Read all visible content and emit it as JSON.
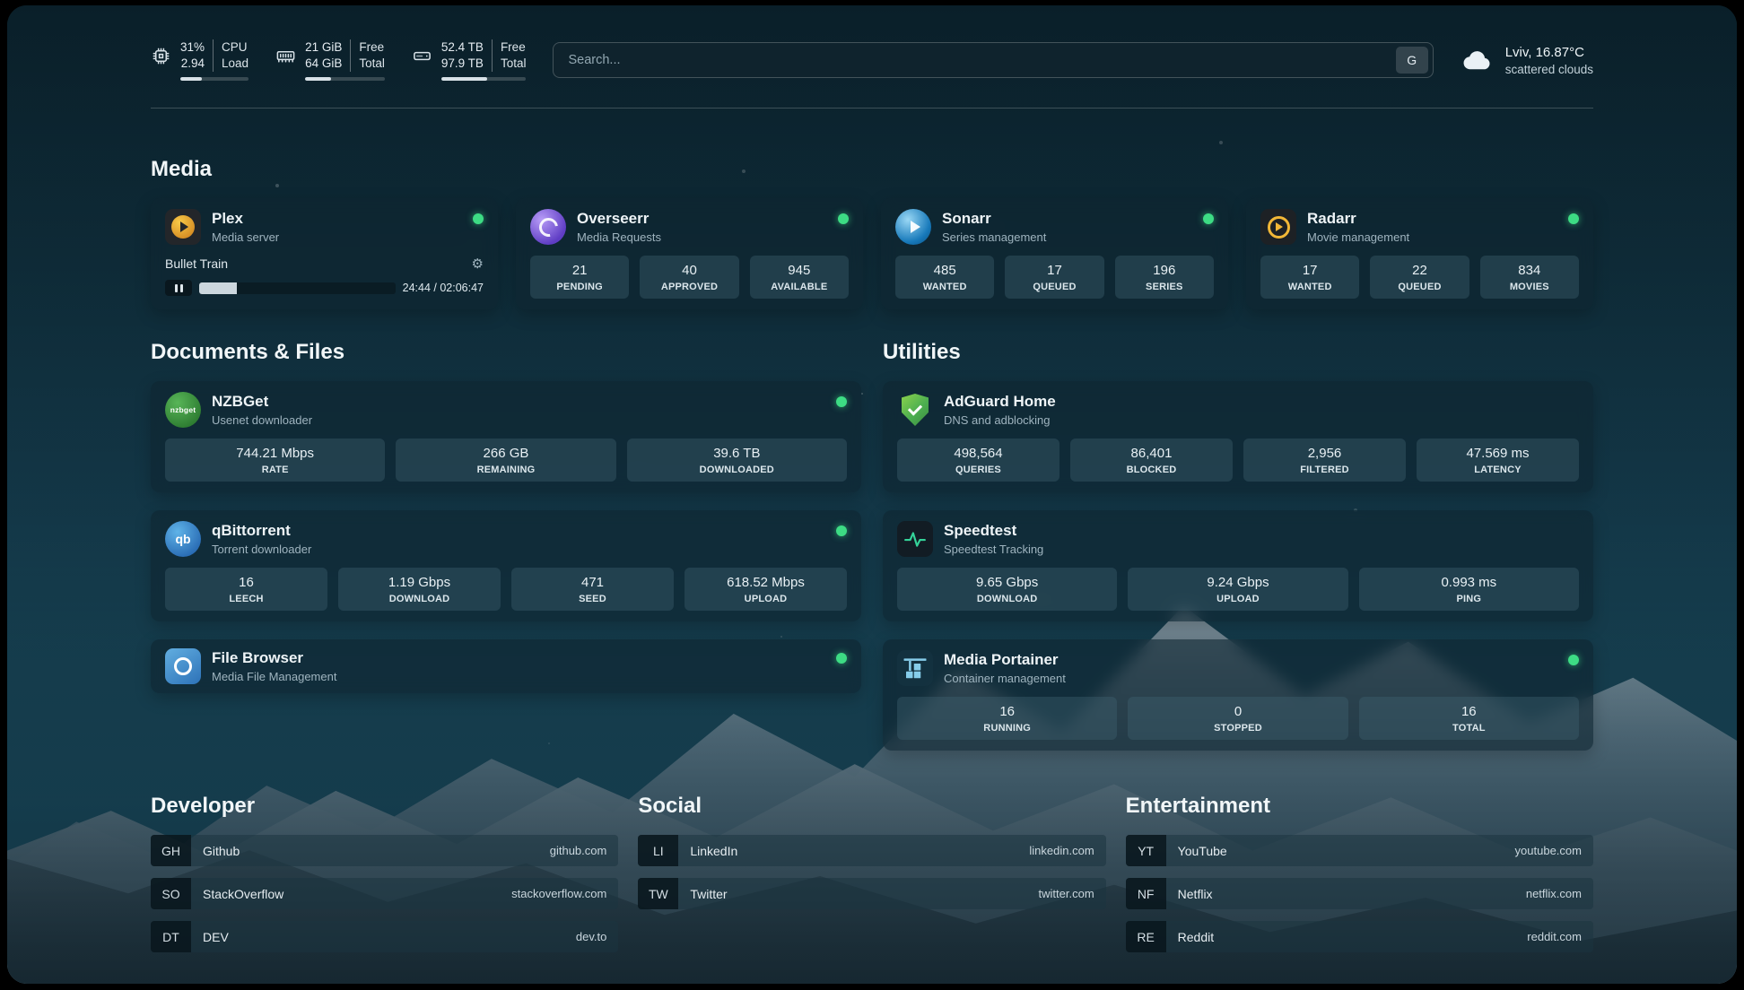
{
  "colors": {
    "accent_green": "#3ddc84",
    "page_teal": "#143a4b"
  },
  "topbar": {
    "cpu": {
      "value1": "31%",
      "label1": "CPU",
      "value2": "2.94",
      "label2": "Load",
      "percent": 31
    },
    "ram": {
      "value1": "21 GiB",
      "label1": "Free",
      "value2": "64 GiB",
      "label2": "Total",
      "percent": 33
    },
    "disk": {
      "value1": "52.4 TB",
      "label1": "Free",
      "value2": "97.9 TB",
      "label2": "Total",
      "percent": 54
    },
    "search": {
      "placeholder": "Search...",
      "engine": "G"
    },
    "weather": {
      "location": "Lviv, 16.87°C",
      "condition": "scattered clouds"
    }
  },
  "media": {
    "title": "Media",
    "plex": {
      "name": "Plex",
      "subtitle": "Media server",
      "now_playing": "Bullet Train",
      "time": "24:44 / 02:06:47",
      "progress_percent": 19
    },
    "overseerr": {
      "name": "Overseerr",
      "subtitle": "Media Requests",
      "stats": [
        {
          "value": "21",
          "label": "PENDING"
        },
        {
          "value": "40",
          "label": "APPROVED"
        },
        {
          "value": "945",
          "label": "AVAILABLE"
        }
      ]
    },
    "sonarr": {
      "name": "Sonarr",
      "subtitle": "Series management",
      "stats": [
        {
          "value": "485",
          "label": "WANTED"
        },
        {
          "value": "17",
          "label": "QUEUED"
        },
        {
          "value": "196",
          "label": "SERIES"
        }
      ]
    },
    "radarr": {
      "name": "Radarr",
      "subtitle": "Movie management",
      "stats": [
        {
          "value": "17",
          "label": "WANTED"
        },
        {
          "value": "22",
          "label": "QUEUED"
        },
        {
          "value": "834",
          "label": "MOVIES"
        }
      ]
    }
  },
  "documents": {
    "title": "Documents & Files",
    "nzbget": {
      "name": "NZBGet",
      "subtitle": "Usenet downloader",
      "stats": [
        {
          "value": "744.21 Mbps",
          "label": "RATE"
        },
        {
          "value": "266 GB",
          "label": "REMAINING"
        },
        {
          "value": "39.6 TB",
          "label": "DOWNLOADED"
        }
      ]
    },
    "qbittorrent": {
      "name": "qBittorrent",
      "subtitle": "Torrent downloader",
      "stats": [
        {
          "value": "16",
          "label": "LEECH"
        },
        {
          "value": "1.19 Gbps",
          "label": "DOWNLOAD"
        },
        {
          "value": "471",
          "label": "SEED"
        },
        {
          "value": "618.52 Mbps",
          "label": "UPLOAD"
        }
      ]
    },
    "filebrowser": {
      "name": "File Browser",
      "subtitle": "Media File Management"
    }
  },
  "utilities": {
    "title": "Utilities",
    "adguard": {
      "name": "AdGuard Home",
      "subtitle": "DNS and adblocking",
      "stats": [
        {
          "value": "498,564",
          "label": "QUERIES"
        },
        {
          "value": "86,401",
          "label": "BLOCKED"
        },
        {
          "value": "2,956",
          "label": "FILTERED"
        },
        {
          "value": "47.569 ms",
          "label": "LATENCY"
        }
      ]
    },
    "speedtest": {
      "name": "Speedtest",
      "subtitle": "Speedtest Tracking",
      "stats": [
        {
          "value": "9.65 Gbps",
          "label": "DOWNLOAD"
        },
        {
          "value": "9.24 Gbps",
          "label": "UPLOAD"
        },
        {
          "value": "0.993 ms",
          "label": "PING"
        }
      ]
    },
    "portainer": {
      "name": "Media Portainer",
      "subtitle": "Container management",
      "stats": [
        {
          "value": "16",
          "label": "RUNNING"
        },
        {
          "value": "0",
          "label": "STOPPED"
        },
        {
          "value": "16",
          "label": "TOTAL"
        }
      ]
    }
  },
  "bookmarks": {
    "developer": {
      "title": "Developer",
      "links": [
        {
          "abbr": "GH",
          "name": "Github",
          "url": "github.com"
        },
        {
          "abbr": "SO",
          "name": "StackOverflow",
          "url": "stackoverflow.com"
        },
        {
          "abbr": "DT",
          "name": "DEV",
          "url": "dev.to"
        }
      ]
    },
    "social": {
      "title": "Social",
      "links": [
        {
          "abbr": "LI",
          "name": "LinkedIn",
          "url": "linkedin.com"
        },
        {
          "abbr": "TW",
          "name": "Twitter",
          "url": "twitter.com"
        }
      ]
    },
    "entertainment": {
      "title": "Entertainment",
      "links": [
        {
          "abbr": "YT",
          "name": "YouTube",
          "url": "youtube.com"
        },
        {
          "abbr": "NF",
          "name": "Netflix",
          "url": "netflix.com"
        },
        {
          "abbr": "RE",
          "name": "Reddit",
          "url": "reddit.com"
        }
      ]
    }
  },
  "icons": {
    "nzbget_text": "nzbget",
    "qbittorrent_text": "qb"
  }
}
